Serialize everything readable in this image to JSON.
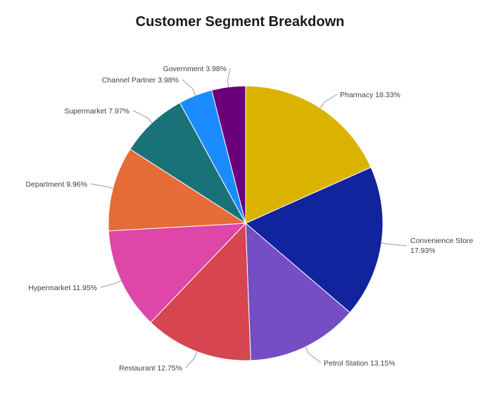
{
  "chart_data": {
    "type": "pie",
    "title": "Customer Segment Breakdown",
    "start_angle": "12 o'clock",
    "direction": "clockwise",
    "slices": [
      {
        "label": "Pharmacy",
        "value": 18.33,
        "value_label": "18.33%",
        "color": "#DAB300"
      },
      {
        "label": "Convenience Store",
        "value": 17.93,
        "value_label": "17.93%",
        "color": "#12239E"
      },
      {
        "label": "Petrol Station",
        "value": 13.15,
        "value_label": "13.15%",
        "color": "#744EC2"
      },
      {
        "label": "Restaurant",
        "value": 12.75,
        "value_label": "12.75%",
        "color": "#D64550"
      },
      {
        "label": "Hypermarket",
        "value": 11.95,
        "value_label": "11.95%",
        "color": "#DE46A8"
      },
      {
        "label": "Department",
        "value": 9.96,
        "value_label": "9.96%",
        "color": "#E66C37"
      },
      {
        "label": "Supermarket",
        "value": 7.97,
        "value_label": "7.97%",
        "color": "#197278"
      },
      {
        "label": "Channel Partner",
        "value": 3.98,
        "value_label": "3.98%",
        "color": "#1A8CFF"
      },
      {
        "label": "Government",
        "value": 3.98,
        "value_label": "3.98%",
        "color": "#6B007B"
      }
    ]
  }
}
